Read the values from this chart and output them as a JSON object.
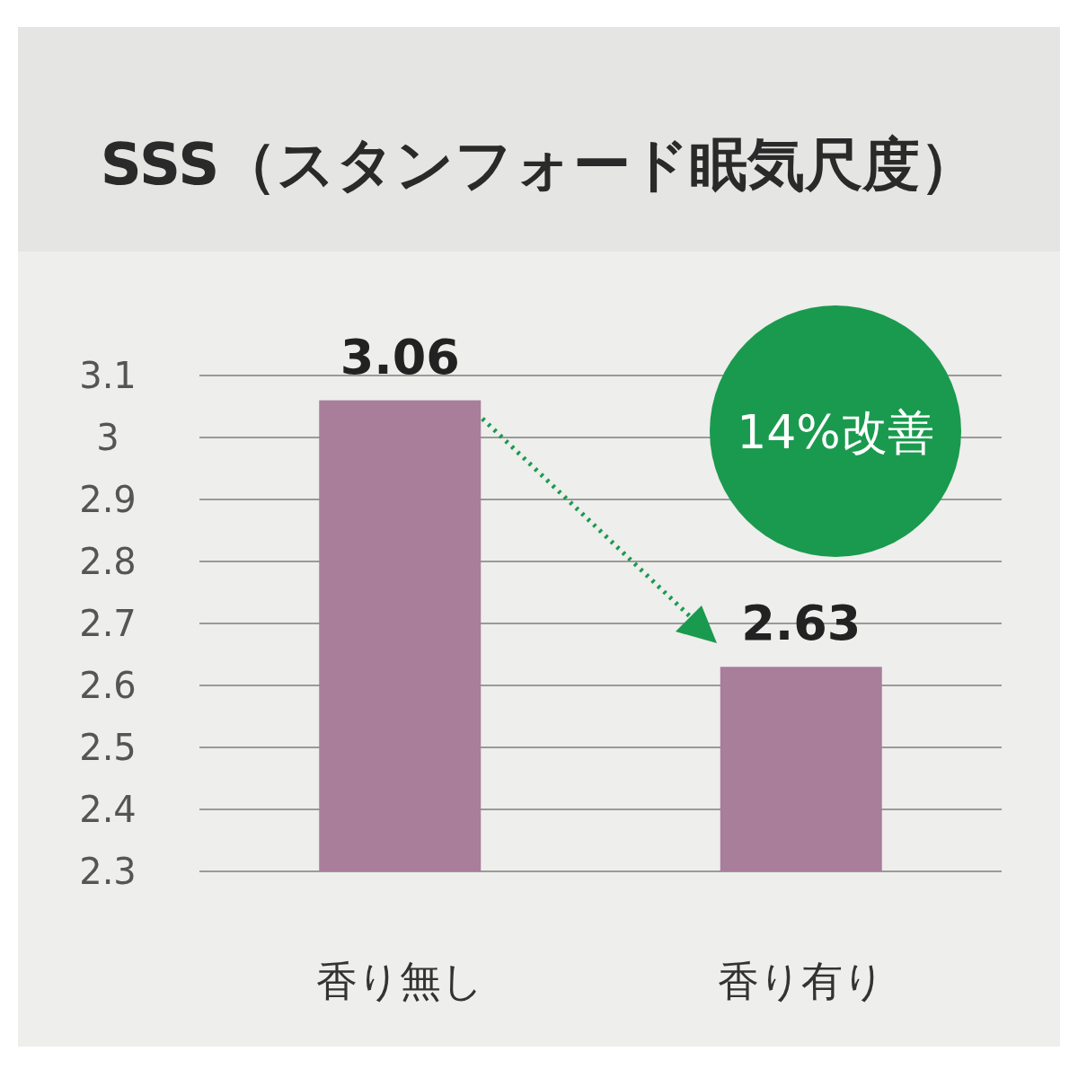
{
  "chart_data": {
    "type": "bar",
    "title": "SSS（スタンフォード眠気尺度）",
    "categories": [
      "香り無し",
      "香り有り"
    ],
    "values": [
      3.06,
      2.63
    ],
    "color": "#a87e9a",
    "ylim": [
      2.3,
      3.1
    ],
    "yticks": [
      2.3,
      2.4,
      2.5,
      2.6,
      2.7,
      2.8,
      2.9,
      3,
      3.1
    ],
    "grid": "y",
    "data_labels": true,
    "annotations": [
      "14%改善"
    ]
  }
}
